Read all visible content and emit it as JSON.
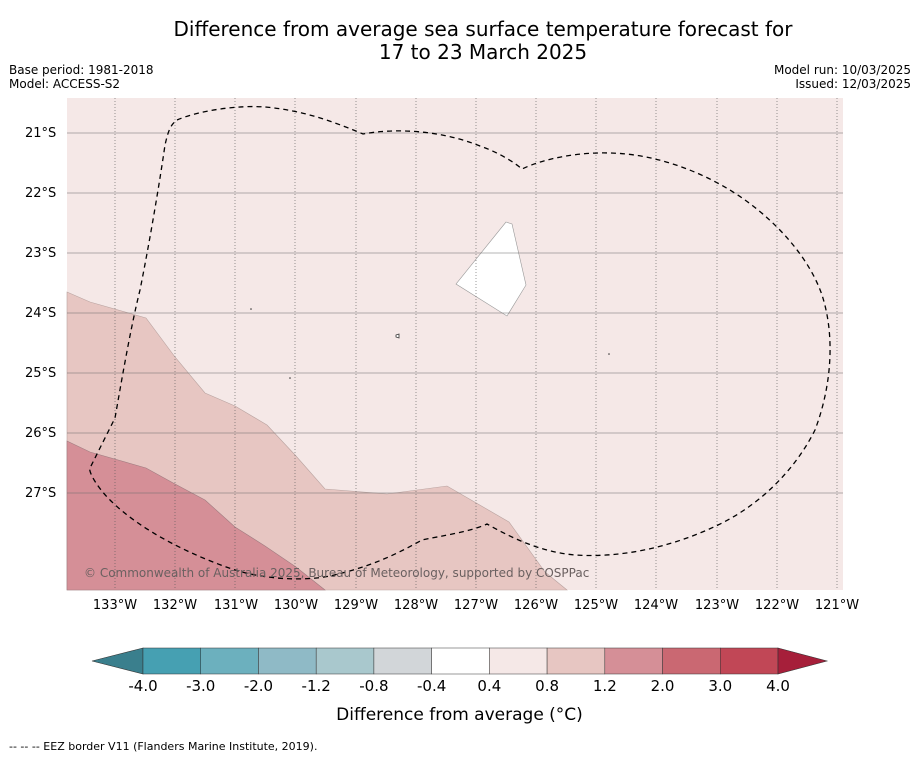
{
  "title_line1": "Difference from average sea surface temperature forecast for",
  "title_line2": "17 to 23 March 2025",
  "base_period": "Base period: 1981-2018",
  "model": "Model: ACCESS-S2",
  "model_run": "Model run: 10/03/2025",
  "issued": "Issued: 12/03/2025",
  "copyright": "© Commonwealth of Australia 2025, Bureau of Meteorology, supported by COSPPac",
  "lat_labels": [
    "21°S",
    "22°S",
    "23°S",
    "24°S",
    "25°S",
    "26°S",
    "27°S"
  ],
  "lon_labels": [
    "133°W",
    "132°W",
    "131°W",
    "130°W",
    "129°W",
    "128°W",
    "127°W",
    "126°W",
    "125°W",
    "124°W",
    "123°W",
    "122°W",
    "121°W"
  ],
  "colorbar": {
    "title": "Difference from average (°C)",
    "labels": [
      "-4.0",
      "-3.0",
      "-2.0",
      "-1.2",
      "-0.8",
      "-0.4",
      "0.4",
      "0.8",
      "1.2",
      "2.0",
      "3.0",
      "4.0"
    ],
    "colors": [
      "#3a7f8d",
      "#46a0b2",
      "#6cb0be",
      "#8fbac6",
      "#a9c8cd",
      "#d2d6d9",
      "#ffffff",
      "#f5e8e7",
      "#e7c6c2",
      "#d58f97",
      "#ca6872",
      "#c14756",
      "#a61f3a"
    ]
  },
  "footnote": "--  --  -- EEZ border V11 (Flanders Marine Institute, 2019)."
}
